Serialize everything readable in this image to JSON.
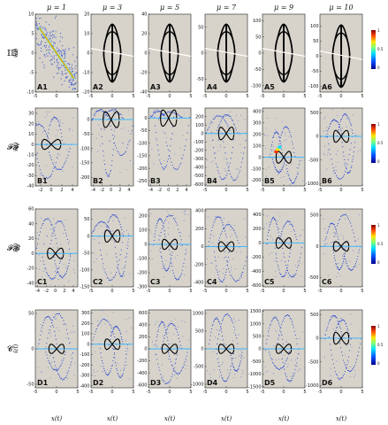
{
  "figure": {
    "col_titles": [
      "μ = 1",
      "μ = 3",
      "μ = 5",
      "μ = 7",
      "μ = 9",
      "μ = 10"
    ],
    "row_labels": [
      "𝕀𝔻",
      "𝓕𝓕",
      "𝓕𝓑",
      "𝓒"
    ],
    "ylabel": "x̃(t)",
    "xlabel": "x(t)",
    "colorbar_ticks": [
      "1",
      "0.5",
      "0"
    ],
    "colors": {
      "panel_bg": "#d7d3ca",
      "trajectory": "#000000",
      "scatter": "#1f3fd0"
    }
  },
  "chart_data": [
    {
      "panel": "A1",
      "type": "scatter",
      "mu": 1,
      "xticks": [
        "-5",
        "0",
        "5"
      ],
      "yticks": [
        "10",
        "5",
        "0",
        "-5",
        "-10"
      ],
      "xlim": [
        -5,
        5
      ],
      "ylim": [
        -10,
        10
      ]
    },
    {
      "panel": "A2",
      "type": "scatter",
      "mu": 3,
      "xticks": [
        "-5",
        "0",
        "5"
      ],
      "yticks": [
        "20",
        "10",
        "0",
        "-10",
        "-20"
      ],
      "xlim": [
        -5,
        5
      ],
      "ylim": [
        -20,
        20
      ]
    },
    {
      "panel": "A3",
      "type": "scatter",
      "mu": 5,
      "xticks": [
        "-5",
        "0",
        "5"
      ],
      "yticks": [
        "40",
        "20",
        "0",
        "-20",
        "-40"
      ],
      "xlim": [
        -5,
        5
      ],
      "ylim": [
        -40,
        40
      ]
    },
    {
      "panel": "A4",
      "type": "scatter",
      "mu": 7,
      "xticks": [
        "-5",
        "0",
        "5"
      ],
      "yticks": [
        "50",
        "0",
        "-50"
      ],
      "xlim": [
        -5,
        5
      ],
      "ylim": [
        -75,
        75
      ]
    },
    {
      "panel": "A5",
      "type": "scatter",
      "mu": 9,
      "xticks": [
        "-5",
        "0",
        "5"
      ],
      "yticks": [
        "100",
        "50",
        "0",
        "-50",
        "-100"
      ],
      "xlim": [
        -5,
        5
      ],
      "ylim": [
        -120,
        120
      ]
    },
    {
      "panel": "A6",
      "type": "scatter",
      "mu": 10,
      "xticks": [
        "-5",
        "0",
        "5"
      ],
      "yticks": [
        "100",
        "50",
        "0",
        "-50",
        "-100"
      ],
      "xlim": [
        -5,
        5
      ],
      "ylim": [
        -120,
        140
      ]
    },
    {
      "panel": "B1",
      "type": "scatter",
      "mu": 1,
      "xticks": [
        "-2",
        "0",
        "2",
        "4"
      ],
      "yticks": [
        "30",
        "20",
        "10",
        "0",
        "-10",
        "-20",
        "-30",
        "-40"
      ],
      "xlim": [
        -3,
        5
      ],
      "ylim": [
        -40,
        35
      ]
    },
    {
      "panel": "B2",
      "type": "scatter",
      "mu": 3,
      "xticks": [
        "-4",
        "-2",
        "0",
        "2",
        "4"
      ],
      "yticks": [
        "0",
        "-50",
        "-100",
        "-150",
        "-200"
      ],
      "xlim": [
        -4.5,
        5
      ],
      "ylim": [
        -230,
        40
      ]
    },
    {
      "panel": "B3",
      "type": "scatter",
      "mu": 5,
      "xticks": [
        "-4",
        "-2",
        "0",
        "2",
        "4"
      ],
      "yticks": [
        "0",
        "-50",
        "-100",
        "-150",
        "-200",
        "-250"
      ],
      "xlim": [
        -4.5,
        5
      ],
      "ylim": [
        -270,
        40
      ]
    },
    {
      "panel": "B4",
      "type": "scatter",
      "mu": 7,
      "xticks": [
        "-5",
        "0",
        "5"
      ],
      "yticks": [
        "200",
        "100",
        "0",
        "-100",
        "-200",
        "-300",
        "-400",
        "-500",
        "-600"
      ],
      "xlim": [
        -5,
        5
      ],
      "ylim": [
        -620,
        300
      ]
    },
    {
      "panel": "B5",
      "type": "scatter",
      "mu": 9,
      "xticks": [
        "-5",
        "0",
        "5"
      ],
      "yticks": [
        "400",
        "300",
        "200",
        "100",
        "0",
        "-100",
        "-200"
      ],
      "xlim": [
        -5,
        5
      ],
      "ylim": [
        -250,
        430
      ]
    },
    {
      "panel": "B6",
      "type": "scatter",
      "mu": 10,
      "xticks": [
        "-5",
        "0",
        "5"
      ],
      "yticks": [
        "500",
        "0",
        "-500",
        "-1000"
      ],
      "xlim": [
        -5,
        5
      ],
      "ylim": [
        -1050,
        600
      ]
    },
    {
      "panel": "C1",
      "type": "scatter",
      "mu": 1,
      "xticks": [
        "-4",
        "-2",
        "0",
        "2",
        "4"
      ],
      "yticks": [
        "60",
        "40",
        "20",
        "0",
        "-20",
        "-40"
      ],
      "xlim": [
        -4.5,
        5
      ],
      "ylim": [
        -45,
        60
      ]
    },
    {
      "panel": "C2",
      "type": "scatter",
      "mu": 3,
      "xticks": [
        "-5",
        "0",
        "5"
      ],
      "yticks": [
        "50",
        "0",
        "-50",
        "-100",
        "-150"
      ],
      "xlim": [
        -5,
        5
      ],
      "ylim": [
        -150,
        80
      ]
    },
    {
      "panel": "C3",
      "type": "scatter",
      "mu": 5,
      "xticks": [
        "-5",
        "0",
        "5"
      ],
      "yticks": [
        "200",
        "100",
        "0",
        "-100",
        "-200",
        "-300"
      ],
      "xlim": [
        -5,
        5
      ],
      "ylim": [
        -300,
        250
      ]
    },
    {
      "panel": "C4",
      "type": "scatter",
      "mu": 7,
      "xticks": [
        "-5",
        "0",
        "5"
      ],
      "yticks": [
        "400",
        "200",
        "0",
        "-200",
        "-400"
      ],
      "xlim": [
        -5,
        5
      ],
      "ylim": [
        -450,
        420
      ]
    },
    {
      "panel": "C5",
      "type": "scatter",
      "mu": 9,
      "xticks": [
        "-5",
        "0",
        "5"
      ],
      "yticks": [
        "400",
        "200",
        "0",
        "-200",
        "-400",
        "-600"
      ],
      "xlim": [
        -5,
        5
      ],
      "ylim": [
        -620,
        480
      ]
    },
    {
      "panel": "C6",
      "type": "scatter",
      "mu": 10,
      "xticks": [
        "-5",
        "0",
        "5"
      ],
      "yticks": [
        "500",
        "0",
        "-500"
      ],
      "xlim": [
        -5,
        5
      ],
      "ylim": [
        -650,
        600
      ]
    },
    {
      "panel": "D1",
      "type": "scatter",
      "mu": 1,
      "xticks": [
        "-5",
        "0",
        "5"
      ],
      "yticks": [
        "50",
        "0",
        "-50"
      ],
      "xlim": [
        -5,
        5
      ],
      "ylim": [
        -55,
        55
      ]
    },
    {
      "panel": "D2",
      "type": "scatter",
      "mu": 3,
      "xticks": [
        "-5",
        "0",
        "5"
      ],
      "yticks": [
        "300",
        "200",
        "100",
        "0",
        "-100",
        "-200",
        "-300",
        "-400"
      ],
      "xlim": [
        -5,
        5
      ],
      "ylim": [
        -420,
        330
      ]
    },
    {
      "panel": "D3",
      "type": "scatter",
      "mu": 5,
      "xticks": [
        "-5",
        "0",
        "5"
      ],
      "yticks": [
        "600",
        "400",
        "200",
        "0",
        "-200",
        "-400",
        "-600"
      ],
      "xlim": [
        -5,
        5
      ],
      "ylim": [
        -650,
        650
      ]
    },
    {
      "panel": "D4",
      "type": "scatter",
      "mu": 7,
      "xticks": [
        "-5",
        "0",
        "5"
      ],
      "yticks": [
        "1000",
        "500",
        "0",
        "-500",
        "-1000"
      ],
      "xlim": [
        -5,
        5
      ],
      "ylim": [
        -1100,
        1100
      ]
    },
    {
      "panel": "D5",
      "type": "scatter",
      "mu": 9,
      "xticks": [
        "-5",
        "0",
        "5"
      ],
      "yticks": [
        "1500",
        "1000",
        "500",
        "0",
        "-500",
        "-1000",
        "-1500"
      ],
      "xlim": [
        -5,
        5
      ],
      "ylim": [
        -1550,
        1550
      ]
    },
    {
      "panel": "D6",
      "type": "scatter",
      "mu": 10,
      "xticks": [
        "-5",
        "0",
        "5"
      ],
      "yticks": [
        "500",
        "0",
        "-500",
        "-1000"
      ],
      "xlim": [
        -5,
        5
      ],
      "ylim": [
        -1050,
        600
      ]
    }
  ]
}
